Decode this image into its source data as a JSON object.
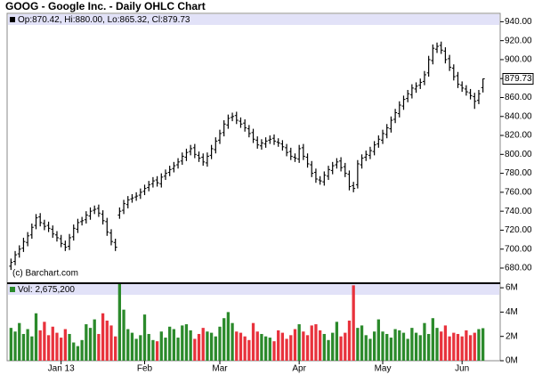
{
  "chart_data": {
    "type": "ohlc",
    "title": "GOOG - Google Inc. - Daily OHLC Chart",
    "legend": "Op:870.42, Hi:880.00, Lo:865.32, Cl:879.73",
    "source": "(c) Barchart.com",
    "categories": [
      null,
      null,
      null,
      null,
      null,
      null,
      null,
      null,
      null,
      null,
      null,
      null,
      "Jan 13",
      null,
      null,
      null,
      null,
      null,
      null,
      null,
      null,
      null,
      null,
      null,
      null,
      null,
      null,
      null,
      null,
      null,
      null,
      null,
      "Feb",
      null,
      null,
      null,
      null,
      null,
      null,
      null,
      null,
      null,
      null,
      null,
      null,
      null,
      null,
      null,
      null,
      null,
      "Mar",
      null,
      null,
      null,
      null,
      null,
      null,
      null,
      null,
      null,
      null,
      null,
      null,
      null,
      null,
      null,
      null,
      null,
      null,
      "Apr",
      null,
      null,
      null,
      null,
      null,
      null,
      null,
      null,
      null,
      null,
      null,
      null,
      null,
      null,
      null,
      null,
      null,
      null,
      null,
      "May",
      null,
      null,
      null,
      null,
      null,
      null,
      null,
      null,
      null,
      null,
      null,
      null,
      null,
      null,
      null,
      null,
      null,
      null,
      "Jun",
      null,
      null,
      null,
      null,
      null
    ],
    "open": [
      682,
      687,
      695,
      701,
      707,
      715,
      725,
      734,
      727,
      725,
      721,
      715,
      711,
      705,
      703,
      713,
      721,
      729,
      731,
      735,
      741,
      743,
      737,
      729,
      717,
      707,
      736,
      741,
      747,
      753,
      755,
      757,
      761,
      765,
      769,
      773,
      769,
      777,
      781,
      785,
      789,
      793,
      797,
      803,
      807,
      799,
      797,
      791,
      799,
      805,
      815,
      823,
      831,
      839,
      841,
      835,
      833,
      827,
      823,
      815,
      809,
      811,
      815,
      817,
      813,
      811,
      807,
      803,
      797,
      795,
      807,
      797,
      789,
      781,
      773,
      771,
      777,
      783,
      789,
      793,
      787,
      779,
      767,
      768,
      789,
      797,
      799,
      803,
      811,
      815,
      821,
      827,
      837,
      843,
      851,
      859,
      863,
      869,
      873,
      877,
      886,
      899,
      911,
      915,
      909,
      901,
      891,
      883,
      873,
      869,
      865,
      861,
      857,
      870.42
    ],
    "high": [
      690,
      698,
      704,
      712,
      718,
      727,
      737,
      738,
      731,
      729,
      725,
      719,
      715,
      709,
      716,
      726,
      732,
      734,
      740,
      744,
      746,
      747,
      741,
      733,
      721,
      711,
      744,
      752,
      756,
      758,
      760,
      764,
      768,
      772,
      776,
      777,
      780,
      784,
      788,
      792,
      796,
      802,
      806,
      810,
      811,
      803,
      801,
      802,
      810,
      818,
      826,
      836,
      842,
      844,
      845,
      839,
      837,
      831,
      827,
      819,
      816,
      818,
      820,
      821,
      817,
      815,
      811,
      807,
      801,
      810,
      811,
      801,
      793,
      785,
      777,
      782,
      788,
      792,
      796,
      797,
      791,
      783,
      771,
      794,
      800,
      804,
      808,
      814,
      820,
      826,
      832,
      840,
      848,
      856,
      862,
      868,
      874,
      876,
      880,
      888,
      904,
      916,
      918,
      919,
      913,
      905,
      895,
      887,
      877,
      873,
      869,
      865,
      868,
      880
    ],
    "low": [
      678,
      683,
      691,
      697,
      703,
      711,
      721,
      724,
      720,
      718,
      712,
      708,
      702,
      698,
      699,
      709,
      717,
      725,
      727,
      731,
      737,
      734,
      726,
      714,
      704,
      698,
      732,
      737,
      743,
      749,
      751,
      753,
      757,
      761,
      765,
      766,
      765,
      773,
      777,
      781,
      785,
      789,
      793,
      799,
      796,
      792,
      788,
      787,
      795,
      801,
      811,
      819,
      827,
      835,
      832,
      828,
      824,
      818,
      812,
      806,
      805,
      807,
      811,
      810,
      808,
      804,
      798,
      794,
      792,
      791,
      794,
      786,
      776,
      770,
      768,
      767,
      773,
      779,
      785,
      782,
      776,
      762,
      760,
      764,
      785,
      793,
      795,
      799,
      807,
      811,
      817,
      823,
      833,
      839,
      847,
      855,
      859,
      865,
      869,
      873,
      882,
      895,
      907,
      906,
      896,
      888,
      878,
      870,
      866,
      862,
      858,
      848,
      853,
      865.32
    ],
    "close": [
      686,
      694,
      700,
      708,
      714,
      723,
      733,
      728,
      724,
      722,
      716,
      712,
      706,
      702,
      712,
      722,
      728,
      730,
      736,
      740,
      742,
      738,
      730,
      718,
      708,
      702,
      740,
      748,
      752,
      754,
      756,
      760,
      764,
      768,
      772,
      770,
      776,
      780,
      784,
      788,
      792,
      798,
      802,
      806,
      800,
      796,
      792,
      798,
      806,
      814,
      822,
      832,
      838,
      840,
      836,
      832,
      828,
      822,
      816,
      810,
      812,
      814,
      816,
      814,
      812,
      808,
      802,
      798,
      796,
      806,
      798,
      790,
      780,
      774,
      772,
      778,
      784,
      788,
      792,
      786,
      780,
      766,
      764,
      790,
      796,
      800,
      804,
      810,
      816,
      822,
      828,
      836,
      844,
      852,
      858,
      864,
      870,
      872,
      876,
      884,
      900,
      912,
      914,
      910,
      900,
      892,
      882,
      874,
      870,
      866,
      862,
      856,
      864,
      879.73
    ],
    "color": "#000000",
    "ylim": [
      664,
      946
    ],
    "yticks": [
      {
        "value": 680,
        "label": "680.00"
      },
      {
        "value": 700,
        "label": "700.00"
      },
      {
        "value": 720,
        "label": "720.00"
      },
      {
        "value": 740,
        "label": "740.00"
      },
      {
        "value": 760,
        "label": "760.00"
      },
      {
        "value": 780,
        "label": "780.00"
      },
      {
        "value": 800,
        "label": "800.00"
      },
      {
        "value": 820,
        "label": "820.00"
      },
      {
        "value": 840,
        "label": "840.00"
      },
      {
        "value": 860,
        "label": "860.00"
      },
      {
        "value": 880,
        "label": "880.00"
      },
      {
        "value": 900,
        "label": "900.00"
      },
      {
        "value": 920,
        "label": "920.00"
      },
      {
        "value": 940,
        "label": "940.00"
      }
    ],
    "volume": {
      "legend": "Vol: 2,675,200",
      "values": [
        2.7,
        2.4,
        3.1,
        2.2,
        2.6,
        2.0,
        3.9,
        2.5,
        3.2,
        2.1,
        2.8,
        2.3,
        1.9,
        2.6,
        2.2,
        1.5,
        1.2,
        1.7,
        3.0,
        2.7,
        3.4,
        2.2,
        3.9,
        3.3,
        2.9,
        2.0,
        6.3,
        4.2,
        2.6,
        2.3,
        1.8,
        2.1,
        3.8,
        2.2,
        1.7,
        1.6,
        2.4,
        1.9,
        2.8,
        2.6,
        1.9,
        2.9,
        3.0,
        2.5,
        1.8,
        2.2,
        2.7,
        2.4,
        2.3,
        2.0,
        2.8,
        3.5,
        4.0,
        3.1,
        2.4,
        2.3,
        2.0,
        1.7,
        3.1,
        2.4,
        2.2,
        2.0,
        1.9,
        1.6,
        2.5,
        2.3,
        1.8,
        2.1,
        2.6,
        3.0,
        2.4,
        2.1,
        2.9,
        3.0,
        2.5,
        2.2,
        1.7,
        2.3,
        3.2,
        2.0,
        2.3,
        3.3,
        6.2,
        2.7,
        2.9,
        2.1,
        1.8,
        2.4,
        3.4,
        2.4,
        2.2,
        1.9,
        2.6,
        2.5,
        2.3,
        1.8,
        2.7,
        2.3,
        2.1,
        3.1,
        2.2,
        3.5,
        2.7,
        2.4,
        2.9,
        2.0,
        2.3,
        2.2,
        2.0,
        2.5,
        2.1,
        2.3,
        2.6,
        2.6752
      ],
      "ylim": [
        0,
        6.3
      ],
      "yticks": [
        {
          "value": 0,
          "label": "0M"
        },
        {
          "value": 2,
          "label": "2M"
        },
        {
          "value": 4,
          "label": "4M"
        },
        {
          "value": 6,
          "label": "6M"
        }
      ],
      "up_color": "#2b8a2b",
      "down_color": "#e8323c"
    }
  }
}
